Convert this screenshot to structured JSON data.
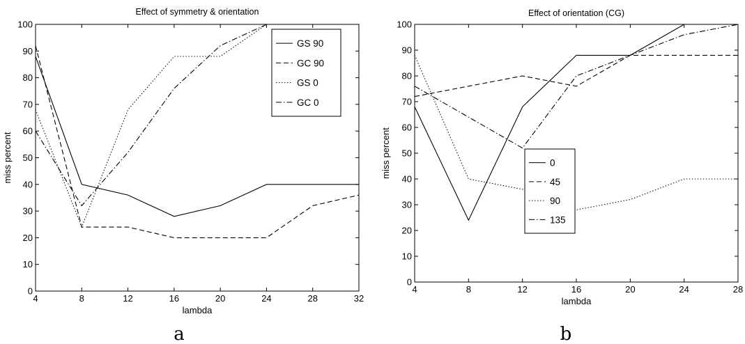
{
  "chart_data": [
    {
      "type": "line",
      "title": "Effect of symmetry & orientation",
      "xlabel": "lambda",
      "ylabel": "miss percent",
      "caption": "a",
      "x": [
        4,
        8,
        12,
        16,
        20,
        24,
        28,
        32
      ],
      "xticks": [
        "4",
        "8",
        "12",
        "16",
        "20",
        "24",
        "28",
        "32"
      ],
      "xlim": [
        4,
        32
      ],
      "yticks": [
        "0",
        "10",
        "20",
        "30",
        "40",
        "50",
        "60",
        "70",
        "80",
        "90",
        "100"
      ],
      "ylim": [
        0,
        100
      ],
      "legend_position": "top-right",
      "series": [
        {
          "name": "GS 90",
          "style": "solid",
          "values": [
            88,
            40,
            36,
            28,
            32,
            40,
            40,
            40
          ]
        },
        {
          "name": "GC 90",
          "style": "dashed",
          "values": [
            92,
            24,
            24,
            20,
            20,
            20,
            32,
            36
          ]
        },
        {
          "name": "GS 0",
          "style": "dotted",
          "values": [
            68,
            24,
            68,
            88,
            88,
            100,
            100,
            100
          ]
        },
        {
          "name": "GC 0",
          "style": "dashdot",
          "values": [
            60,
            32,
            52,
            76,
            92,
            100,
            100,
            100
          ]
        }
      ]
    },
    {
      "type": "line",
      "title": "Effect of orientation (CG)",
      "xlabel": "lambda",
      "ylabel": "miss percent",
      "caption": "b",
      "x": [
        4,
        8,
        12,
        16,
        20,
        24,
        28
      ],
      "xticks": [
        "4",
        "8",
        "12",
        "16",
        "20",
        "24",
        "28"
      ],
      "xlim": [
        4,
        28
      ],
      "yticks": [
        "0",
        "10",
        "20",
        "30",
        "40",
        "50",
        "60",
        "70",
        "80",
        "90",
        "100"
      ],
      "ylim": [
        0,
        100
      ],
      "legend_position": "center-left",
      "series": [
        {
          "name": "0",
          "style": "solid",
          "values": [
            68,
            24,
            68,
            88,
            88,
            100,
            100
          ]
        },
        {
          "name": "45",
          "style": "dashed",
          "values": [
            72,
            76,
            80,
            76,
            88,
            88,
            88
          ]
        },
        {
          "name": "90",
          "style": "dotted",
          "values": [
            88,
            40,
            36,
            28,
            32,
            40,
            40
          ]
        },
        {
          "name": "135",
          "style": "dashdot",
          "values": [
            76,
            64,
            52,
            80,
            88,
            96,
            100
          ]
        }
      ]
    }
  ]
}
